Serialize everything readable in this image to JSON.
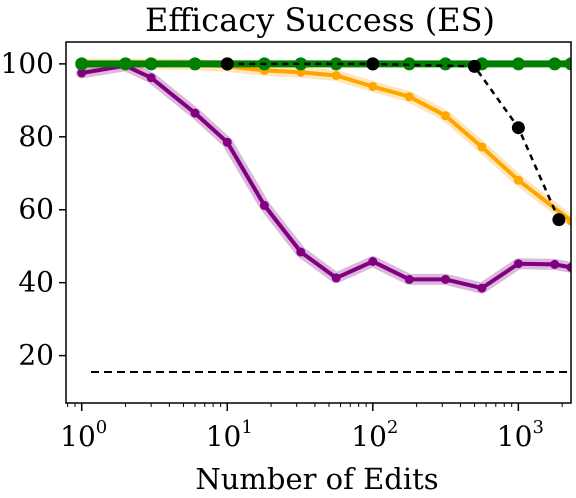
{
  "chart_data": {
    "type": "line",
    "title": "Efficacy Success (ES)",
    "xlabel": "Number of Edits",
    "ylabel": "",
    "x_scale": "log",
    "xlim": [
      0.78,
      2300
    ],
    "ylim": [
      7,
      106
    ],
    "grid": false,
    "legend": "none",
    "x_ticks": [
      {
        "value": 1,
        "base": "10",
        "exp": "0"
      },
      {
        "value": 10,
        "base": "10",
        "exp": "1"
      },
      {
        "value": 100,
        "base": "10",
        "exp": "2"
      },
      {
        "value": 1000,
        "base": "10",
        "exp": "3"
      }
    ],
    "y_ticks": [
      20,
      40,
      60,
      80,
      100
    ],
    "series": [
      {
        "color": "#ffa500",
        "style": "solid",
        "band": true,
        "x": [
          1,
          2,
          3,
          6,
          10,
          18,
          32,
          56,
          100,
          178,
          316,
          562,
          1000,
          2300
        ],
        "y": [
          100,
          100,
          100,
          99.8,
          99.3,
          98.2,
          97.7,
          96.8,
          93.8,
          91.0,
          85.8,
          77.2,
          68.1,
          57.0
        ]
      },
      {
        "color": "#800080",
        "style": "solid",
        "band": true,
        "x": [
          1,
          2,
          3,
          6,
          10,
          18,
          32,
          56,
          100,
          178,
          316,
          562,
          1000,
          1778,
          2300
        ],
        "y": [
          97.5,
          99.5,
          96.2,
          86.5,
          78.5,
          61.2,
          48.4,
          41.3,
          45.8,
          40.9,
          40.9,
          38.5,
          45.2,
          45.0,
          44.2
        ]
      },
      {
        "color": "#008000",
        "style": "solid",
        "band": false,
        "x": [
          1,
          2,
          3,
          6,
          10,
          18,
          32,
          56,
          100,
          178,
          316,
          562,
          1000,
          1778,
          2300
        ],
        "y": [
          100,
          100,
          100,
          100,
          100,
          100,
          100,
          100,
          100,
          100,
          100,
          100,
          100,
          100,
          100
        ]
      },
      {
        "color": "#000000",
        "style": "dashed",
        "band": false,
        "x": [
          10,
          100,
          500,
          1000,
          1900
        ],
        "y": [
          100,
          100,
          99.3,
          82.5,
          57.3
        ]
      }
    ],
    "reference_line": {
      "y": 15.5,
      "color": "#000000",
      "style": "dashed"
    }
  }
}
